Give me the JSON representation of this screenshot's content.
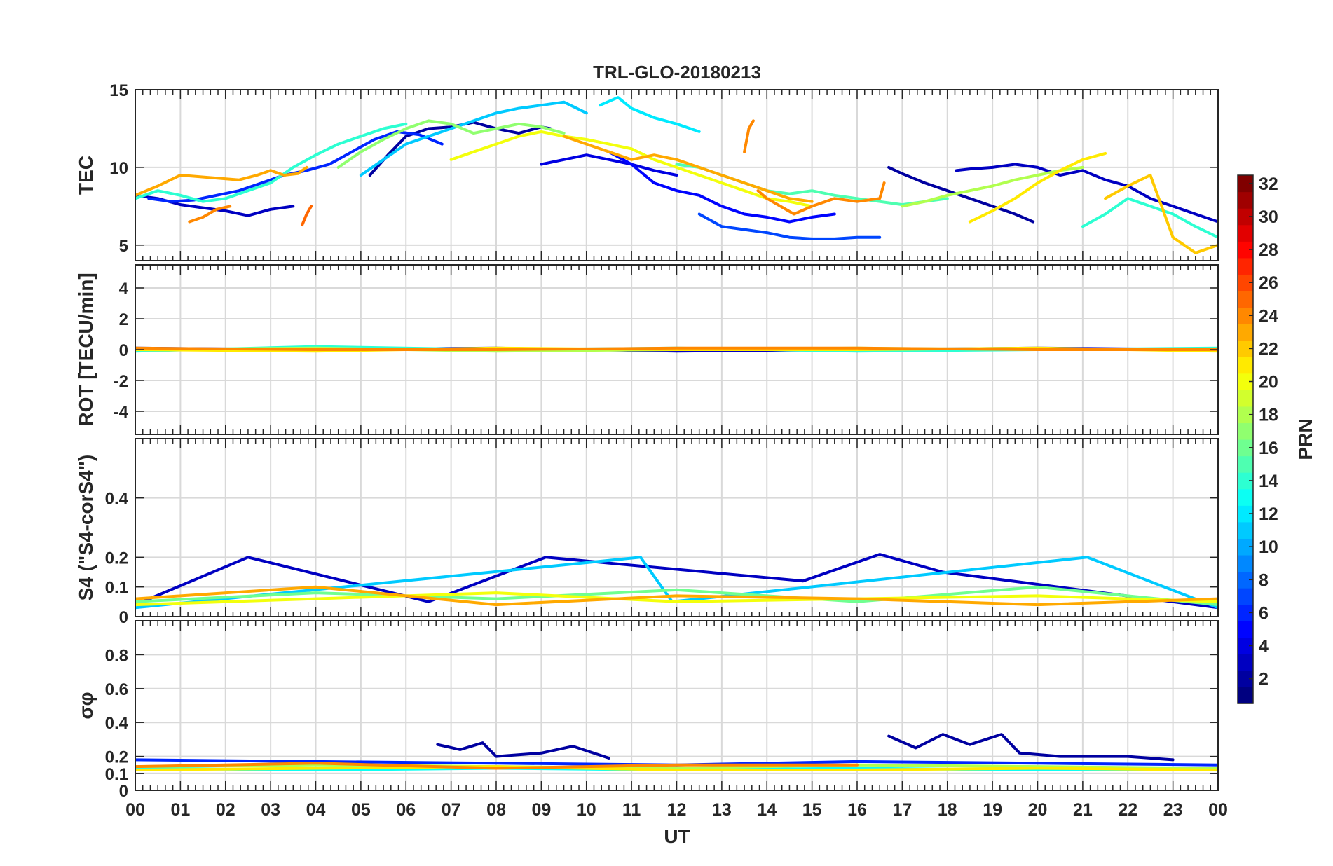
{
  "chart_data": {
    "type": "line",
    "title": "TRL-GLO-20180213",
    "xlabel": "UT",
    "x_ticks": [
      "00",
      "01",
      "02",
      "03",
      "04",
      "05",
      "06",
      "07",
      "08",
      "09",
      "10",
      "11",
      "12",
      "13",
      "14",
      "15",
      "16",
      "17",
      "18",
      "19",
      "20",
      "21",
      "22",
      "23",
      "00"
    ],
    "xlim": [
      0,
      24
    ],
    "grid": true,
    "panels": [
      {
        "id": "tec",
        "ylabel": "TEC",
        "ylim": [
          4,
          15
        ],
        "yticks": [
          5,
          10,
          15
        ],
        "series": [
          {
            "prn": 3,
            "x": [
              0.0,
              0.5,
              1.0,
              1.5,
              2.0,
              2.5,
              3.0,
              3.5
            ],
            "y": [
              8.2,
              8.0,
              7.6,
              7.4,
              7.2,
              6.9,
              7.3,
              7.5
            ]
          },
          {
            "prn": 2,
            "x": [
              5.2,
              5.6,
              6.0,
              6.5,
              7.0,
              7.5,
              8.0,
              8.5,
              9.0,
              9.2
            ],
            "y": [
              9.5,
              10.8,
              12.0,
              12.5,
              12.6,
              12.9,
              12.5,
              12.2,
              12.6,
              12.5
            ]
          },
          {
            "prn": 4,
            "x": [
              9.0,
              9.5,
              10.0,
              10.5,
              11.0,
              11.5,
              12.0
            ],
            "y": [
              10.2,
              10.5,
              10.8,
              10.5,
              10.2,
              9.8,
              9.5
            ]
          },
          {
            "prn": 5,
            "x": [
              10.5,
              11.0,
              11.5,
              12.0,
              12.5,
              13.0,
              13.5,
              14.0,
              14.5,
              15.0,
              15.5
            ],
            "y": [
              11.0,
              10.2,
              9.0,
              8.5,
              8.2,
              7.5,
              7.0,
              6.8,
              6.5,
              6.8,
              7.0
            ]
          },
          {
            "prn": 2,
            "x": [
              16.7,
              17.0,
              17.5,
              18.0,
              18.5,
              19.0,
              19.5,
              19.9
            ],
            "y": [
              10.0,
              9.6,
              9.0,
              8.5,
              8.0,
              7.5,
              7.0,
              6.5
            ]
          },
          {
            "prn": 3,
            "x": [
              18.2,
              18.5,
              19.0,
              19.5,
              20.0,
              20.5,
              21.0,
              21.5,
              22.0,
              22.5,
              23.0,
              23.5,
              24.0
            ],
            "y": [
              9.8,
              9.9,
              10.0,
              10.2,
              10.0,
              9.5,
              9.8,
              9.2,
              8.8,
              8.0,
              7.5,
              7.0,
              6.5
            ]
          },
          {
            "prn": 6,
            "x": [
              0.3,
              0.8,
              1.3,
              1.8,
              2.3,
              2.8,
              3.3,
              3.8,
              4.3,
              4.8,
              5.3,
              5.8,
              6.3,
              6.8
            ],
            "y": [
              8.0,
              7.8,
              7.9,
              8.2,
              8.5,
              9.0,
              9.5,
              9.8,
              10.2,
              11.0,
              11.8,
              12.3,
              12.1,
              11.5
            ]
          },
          {
            "prn": 7,
            "x": [
              12.5,
              13.0,
              13.5,
              14.0,
              14.5,
              15.0,
              15.5,
              16.0,
              16.5
            ],
            "y": [
              7.0,
              6.2,
              6.0,
              5.8,
              5.5,
              5.4,
              5.4,
              5.5,
              5.5
            ]
          },
          {
            "prn": 11,
            "x": [
              5.0,
              5.5,
              6.0,
              6.5,
              7.0,
              7.5,
              8.0,
              8.5,
              9.0,
              9.5,
              10.0
            ],
            "y": [
              9.5,
              10.5,
              11.5,
              12.0,
              12.5,
              13.0,
              13.5,
              13.8,
              14.0,
              14.2,
              13.5
            ]
          },
          {
            "prn": 12,
            "x": [
              10.3,
              10.7,
              11.0,
              11.5,
              12.0,
              12.5
            ],
            "y": [
              14.0,
              14.5,
              13.8,
              13.2,
              12.8,
              12.3
            ]
          },
          {
            "prn": 14,
            "x": [
              0.0,
              0.5,
              1.0,
              1.5,
              2.0,
              2.5,
              3.0,
              3.5,
              4.0,
              4.5,
              5.0,
              5.5,
              6.0
            ],
            "y": [
              8.0,
              8.5,
              8.2,
              7.8,
              8.0,
              8.5,
              9.0,
              10.0,
              10.8,
              11.5,
              12.0,
              12.5,
              12.8
            ]
          },
          {
            "prn": 14,
            "x": [
              21.0,
              21.5,
              22.0,
              22.5,
              23.0,
              23.5,
              24.0
            ],
            "y": [
              6.2,
              7.0,
              8.0,
              7.5,
              7.0,
              6.2,
              5.5
            ]
          },
          {
            "prn": 15,
            "x": [
              12.0,
              12.5,
              13.0,
              13.5,
              14.0,
              14.5,
              15.0,
              15.5,
              16.0,
              16.5,
              17.0,
              17.5,
              18.0
            ],
            "y": [
              10.2,
              10.0,
              9.5,
              9.0,
              8.5,
              8.3,
              8.5,
              8.2,
              8.0,
              7.8,
              7.6,
              7.8,
              8.0
            ]
          },
          {
            "prn": 17,
            "x": [
              4.5,
              5.0,
              5.5,
              6.0,
              6.5,
              7.0,
              7.5,
              8.0,
              8.5,
              9.0,
              9.5
            ],
            "y": [
              10.0,
              11.0,
              11.8,
              12.5,
              13.0,
              12.8,
              12.2,
              12.5,
              12.8,
              12.6,
              12.2
            ]
          },
          {
            "prn": 18,
            "x": [
              17.0,
              17.5,
              18.0,
              18.5,
              19.0,
              19.5,
              20.0,
              20.5,
              21.0
            ],
            "y": [
              7.5,
              7.8,
              8.2,
              8.5,
              8.8,
              9.2,
              9.5,
              9.8,
              10.0
            ]
          },
          {
            "prn": 20,
            "x": [
              7.0,
              7.5,
              8.0,
              8.5,
              9.0,
              9.5,
              10.0,
              10.5,
              11.0,
              11.5,
              12.0,
              12.5,
              13.0,
              13.5,
              14.0,
              14.5,
              15.0
            ],
            "y": [
              10.5,
              11.0,
              11.5,
              12.0,
              12.3,
              12.0,
              11.8,
              11.5,
              11.2,
              10.5,
              10.0,
              9.5,
              9.0,
              8.5,
              8.0,
              7.8,
              7.5
            ]
          },
          {
            "prn": 21,
            "x": [
              18.5,
              19.0,
              19.5,
              20.0,
              20.5,
              21.0,
              21.5
            ],
            "y": [
              6.5,
              7.2,
              8.0,
              9.0,
              9.8,
              10.5,
              10.9
            ]
          },
          {
            "prn": 22,
            "x": [
              21.5,
              22.0,
              22.5,
              23.0,
              23.5,
              24.0
            ],
            "y": [
              8.0,
              8.8,
              9.5,
              5.5,
              4.5,
              5.0
            ]
          },
          {
            "prn": 23,
            "x": [
              0.0,
              0.5,
              1.0,
              2.3,
              2.7,
              3.0,
              3.3,
              3.6,
              3.8
            ],
            "y": [
              8.2,
              8.8,
              9.5,
              9.2,
              9.5,
              9.8,
              9.5,
              9.6,
              10.0
            ]
          },
          {
            "prn": 23,
            "x": [
              9.5,
              10.0,
              10.5,
              11.0,
              11.5,
              12.0,
              12.5,
              13.0,
              13.5,
              14.0,
              14.5,
              15.0
            ],
            "y": [
              12.0,
              11.5,
              11.0,
              10.5,
              10.8,
              10.5,
              10.0,
              9.5,
              9.0,
              8.5,
              8.0,
              7.8
            ]
          },
          {
            "prn": 24,
            "x": [
              13.5,
              13.6,
              13.7
            ],
            "y": [
              11.0,
              12.5,
              13.0
            ]
          },
          {
            "prn": 24,
            "x": [
              13.8,
              14.0,
              14.3,
              14.6,
              15.0,
              15.5,
              16.0,
              16.5,
              16.6
            ],
            "y": [
              8.5,
              8.0,
              7.5,
              7.0,
              7.5,
              8.0,
              7.8,
              8.0,
              9.0
            ]
          },
          {
            "prn": 24,
            "x": [
              1.2,
              1.5,
              1.8,
              2.1
            ],
            "y": [
              6.5,
              6.8,
              7.3,
              7.5
            ]
          },
          {
            "prn": 25,
            "x": [
              3.7,
              3.8,
              3.9
            ],
            "y": [
              6.3,
              7.0,
              7.5
            ]
          }
        ]
      },
      {
        "id": "rot",
        "ylabel": "ROT [TECU/min]",
        "ylim": [
          -5.5,
          5.5
        ],
        "yticks": [
          -4,
          -2,
          0,
          2,
          4
        ],
        "series": [
          {
            "prn": 3,
            "x": [
              0,
              4,
              8,
              12,
              16,
              20,
              24
            ],
            "y": [
              0.1,
              0.0,
              0.1,
              -0.1,
              0.0,
              0.1,
              0.0
            ]
          },
          {
            "prn": 14,
            "x": [
              0,
              4,
              8,
              12,
              16,
              20,
              24
            ],
            "y": [
              -0.1,
              0.2,
              0.0,
              0.1,
              -0.1,
              0.0,
              0.1
            ]
          },
          {
            "prn": 18,
            "x": [
              0,
              4,
              8,
              12,
              16,
              20,
              24
            ],
            "y": [
              0.0,
              0.1,
              -0.1,
              0.0,
              0.1,
              0.0,
              0.0
            ]
          },
          {
            "prn": 21,
            "x": [
              0,
              4,
              8,
              12,
              16,
              20,
              24
            ],
            "y": [
              0.0,
              -0.1,
              0.1,
              0.0,
              0.0,
              0.1,
              -0.1
            ]
          },
          {
            "prn": 24,
            "x": [
              0,
              4,
              8,
              12,
              16,
              20,
              24
            ],
            "y": [
              0.1,
              0.0,
              0.0,
              0.1,
              0.1,
              0.0,
              0.0
            ]
          }
        ]
      },
      {
        "id": "s4",
        "ylabel": "S4 (\"S4-corS4\")",
        "ylim": [
          0,
          0.6
        ],
        "yticks": [
          0,
          0.1,
          0.2,
          0.4
        ],
        "series": [
          {
            "prn": 3,
            "x": [
              0,
              2.5,
              6.5,
              9.1,
              14.8,
              16.5,
              17.9,
              24
            ],
            "y": [
              0.04,
              0.2,
              0.05,
              0.2,
              0.12,
              0.21,
              0.15,
              0.03
            ]
          },
          {
            "prn": 11,
            "x": [
              0,
              11.2,
              11.9,
              21.1,
              24
            ],
            "y": [
              0.03,
              0.2,
              0.05,
              0.2,
              0.03
            ]
          },
          {
            "prn": 16,
            "x": [
              0,
              4,
              8,
              12,
              16,
              20,
              24
            ],
            "y": [
              0.05,
              0.08,
              0.06,
              0.09,
              0.05,
              0.1,
              0.04
            ]
          },
          {
            "prn": 20,
            "x": [
              0,
              4,
              8,
              12,
              16,
              20,
              24
            ],
            "y": [
              0.04,
              0.06,
              0.08,
              0.05,
              0.06,
              0.07,
              0.05
            ]
          },
          {
            "prn": 23,
            "x": [
              0,
              4,
              8,
              12,
              16,
              20,
              24
            ],
            "y": [
              0.06,
              0.1,
              0.04,
              0.07,
              0.06,
              0.04,
              0.06
            ]
          }
        ]
      },
      {
        "id": "sigma",
        "ylabel": "σφ",
        "ylim": [
          0,
          1
        ],
        "yticks": [
          0,
          0.1,
          0.2,
          0.4,
          0.6,
          0.8
        ],
        "series": [
          {
            "prn": 2,
            "x": [
              6.7,
              7.2,
              7.7,
              8.0,
              9.0,
              9.7,
              10.5
            ],
            "y": [
              0.27,
              0.24,
              0.28,
              0.2,
              0.22,
              0.26,
              0.19
            ]
          },
          {
            "prn": 2,
            "x": [
              16.7,
              17.3,
              17.9,
              18.5,
              19.2,
              19.6,
              20.5,
              22.0,
              23.0
            ],
            "y": [
              0.32,
              0.25,
              0.33,
              0.27,
              0.33,
              0.22,
              0.2,
              0.2,
              0.18
            ]
          },
          {
            "prn": 6,
            "x": [
              0,
              4,
              8,
              12,
              16,
              20,
              24
            ],
            "y": [
              0.18,
              0.17,
              0.16,
              0.15,
              0.17,
              0.16,
              0.15
            ]
          },
          {
            "prn": 13,
            "x": [
              0,
              4,
              8,
              12,
              16,
              20,
              24
            ],
            "y": [
              0.13,
              0.12,
              0.13,
              0.12,
              0.13,
              0.12,
              0.12
            ]
          },
          {
            "prn": 18,
            "x": [
              0,
              4,
              8,
              12,
              16,
              20,
              24
            ],
            "y": [
              0.14,
              0.15,
              0.14,
              0.13,
              0.15,
              0.14,
              0.13
            ]
          },
          {
            "prn": 21,
            "x": [
              0,
              4,
              8,
              12,
              16,
              20,
              24
            ],
            "y": [
              0.12,
              0.13,
              0.14,
              0.12,
              0.12,
              0.13,
              0.12
            ]
          },
          {
            "prn": 24,
            "x": [
              0,
              4,
              8,
              12,
              16
            ],
            "y": [
              0.14,
              0.16,
              0.13,
              0.15,
              0.15
            ]
          }
        ]
      }
    ],
    "colorbar": {
      "label": "PRN",
      "colormap": "jet",
      "range": [
        1,
        32
      ],
      "ticks": [
        2,
        4,
        6,
        8,
        10,
        12,
        14,
        16,
        18,
        20,
        22,
        24,
        26,
        28,
        30,
        32
      ]
    }
  }
}
